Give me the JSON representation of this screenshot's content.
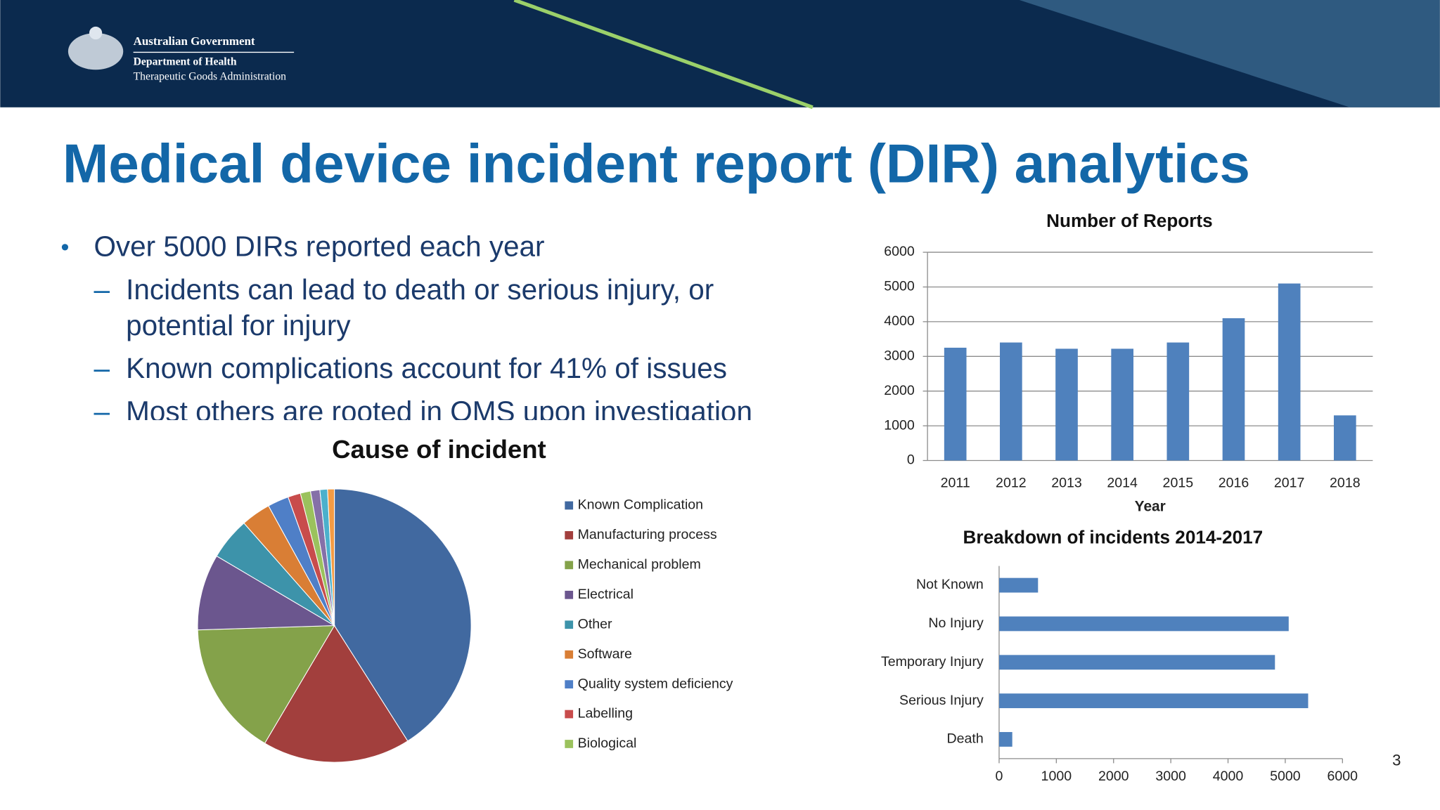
{
  "header": {
    "org": "Australian Government",
    "department": "Department of Health",
    "agency": "Therapeutic Goods Administration"
  },
  "title": "Medical device incident report (DIR) analytics",
  "bullets": [
    {
      "text": "Over 5000 DIRs reported each year",
      "sub": [
        "Incidents can lead to death or serious injury, or",
        "potential for injury",
        "Known complications account for 41% of issues",
        "Most others are rooted in QMS upon investigation"
      ]
    }
  ],
  "page_number": 3,
  "chart_data": [
    {
      "type": "bar",
      "title": "Number of Reports",
      "xlabel": "Year",
      "categories": [
        "2011",
        "2012",
        "2013",
        "2014",
        "2015",
        "2016",
        "2017",
        "2018"
      ],
      "values": [
        3250,
        3400,
        3220,
        3220,
        3400,
        4100,
        5100,
        1300
      ],
      "color": "#4f81bd",
      "ylim": [
        0,
        6000
      ],
      "yticks": [
        0,
        1000,
        2000,
        3000,
        4000,
        5000,
        6000
      ],
      "grid": true
    },
    {
      "type": "pie",
      "title": "Cause of incident",
      "legend": "right",
      "categories": [
        "Known Complication",
        "Manufacturing process",
        "Mechanical problem",
        "Electrical",
        "Other",
        "Software",
        "Quality system deficiency",
        "Labelling",
        "Biological",
        null,
        null,
        null
      ],
      "values": [
        41,
        17.5,
        16,
        9,
        5,
        3.5,
        2.5,
        1.5,
        1.2,
        1.1,
        0.9,
        0.8
      ],
      "colors": [
        "#4169a0",
        "#a23f3d",
        "#84a24a",
        "#6b568e",
        "#3d93aa",
        "#d97e35",
        "#4f7fc7",
        "#c84c4c",
        "#9bc25d",
        "#8570a8",
        "#4bb0cc",
        "#f39b44"
      ]
    },
    {
      "type": "bar",
      "orientation": "horizontal",
      "title": "Breakdown of incidents 2014-2017",
      "categories": [
        "Death",
        "Serious Injury",
        "Temporary Injury",
        "No Injury",
        "Not Known"
      ],
      "values": [
        230,
        5400,
        4820,
        5060,
        680
      ],
      "color": "#4f81bd",
      "xlim": [
        0,
        6000
      ],
      "xticks": [
        0,
        1000,
        2000,
        3000,
        4000,
        5000,
        6000
      ],
      "grid": false
    }
  ]
}
